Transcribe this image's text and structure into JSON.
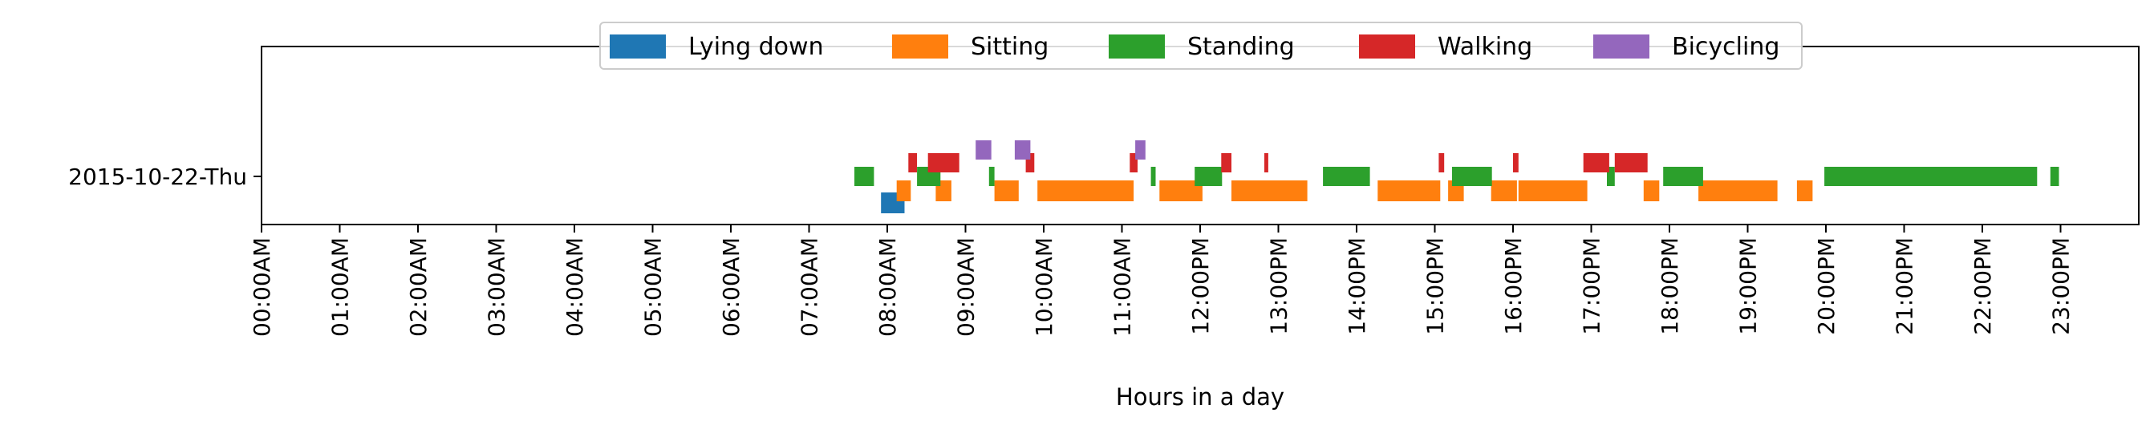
{
  "chart_data": {
    "type": "timeline",
    "xlabel": "Hours in a day",
    "xlim": [
      0,
      24
    ],
    "x_ticks": [
      {
        "value": 0,
        "label": "00:00AM"
      },
      {
        "value": 1,
        "label": "01:00AM"
      },
      {
        "value": 2,
        "label": "02:00AM"
      },
      {
        "value": 3,
        "label": "03:00AM"
      },
      {
        "value": 4,
        "label": "04:00AM"
      },
      {
        "value": 5,
        "label": "05:00AM"
      },
      {
        "value": 6,
        "label": "06:00AM"
      },
      {
        "value": 7,
        "label": "07:00AM"
      },
      {
        "value": 8,
        "label": "08:00AM"
      },
      {
        "value": 9,
        "label": "09:00AM"
      },
      {
        "value": 10,
        "label": "10:00AM"
      },
      {
        "value": 11,
        "label": "11:00AM"
      },
      {
        "value": 12,
        "label": "12:00PM"
      },
      {
        "value": 13,
        "label": "13:00PM"
      },
      {
        "value": 14,
        "label": "14:00PM"
      },
      {
        "value": 15,
        "label": "15:00PM"
      },
      {
        "value": 16,
        "label": "16:00PM"
      },
      {
        "value": 17,
        "label": "17:00PM"
      },
      {
        "value": 18,
        "label": "18:00PM"
      },
      {
        "value": 19,
        "label": "19:00PM"
      },
      {
        "value": 20,
        "label": "20:00PM"
      },
      {
        "value": 21,
        "label": "21:00PM"
      },
      {
        "value": 22,
        "label": "22:00PM"
      },
      {
        "value": 23,
        "label": "23:00PM"
      }
    ],
    "y_category": "2015-10-22-Thu",
    "legend": {
      "placement": "top-center"
    },
    "series": [
      {
        "name": "Lying down",
        "color": "#1f77b4",
        "intervals": [
          [
            7.92,
            8.22
          ]
        ]
      },
      {
        "name": "Sitting",
        "color": "#ff7f0e",
        "intervals": [
          [
            8.12,
            8.3
          ],
          [
            8.62,
            8.82
          ],
          [
            9.37,
            9.68
          ],
          [
            9.92,
            11.15
          ],
          [
            11.48,
            12.03
          ],
          [
            12.4,
            13.37
          ],
          [
            14.27,
            15.07
          ],
          [
            15.17,
            15.37
          ],
          [
            15.72,
            16.05
          ],
          [
            16.07,
            16.95
          ],
          [
            17.67,
            17.87
          ],
          [
            18.37,
            19.38
          ],
          [
            19.63,
            19.83
          ]
        ]
      },
      {
        "name": "Standing",
        "color": "#2ca02c",
        "intervals": [
          [
            7.58,
            7.83
          ],
          [
            8.38,
            8.68
          ],
          [
            9.3,
            9.37
          ],
          [
            11.37,
            11.43
          ],
          [
            11.93,
            12.28
          ],
          [
            13.57,
            14.17
          ],
          [
            15.22,
            15.73
          ],
          [
            17.2,
            17.3
          ],
          [
            17.92,
            18.43
          ],
          [
            19.98,
            22.7
          ],
          [
            22.87,
            22.98
          ]
        ]
      },
      {
        "name": "Walking",
        "color": "#d62728",
        "intervals": [
          [
            8.27,
            8.38
          ],
          [
            8.52,
            8.92
          ],
          [
            9.77,
            9.88
          ],
          [
            11.1,
            11.2
          ],
          [
            12.27,
            12.4
          ],
          [
            12.82,
            12.87
          ],
          [
            15.05,
            15.12
          ],
          [
            16.0,
            16.07
          ],
          [
            16.9,
            17.23
          ],
          [
            17.3,
            17.72
          ]
        ]
      },
      {
        "name": "Bicycling",
        "color": "#9467bd",
        "intervals": [
          [
            9.13,
            9.33
          ],
          [
            9.63,
            9.83
          ],
          [
            11.17,
            11.3
          ]
        ]
      }
    ]
  }
}
